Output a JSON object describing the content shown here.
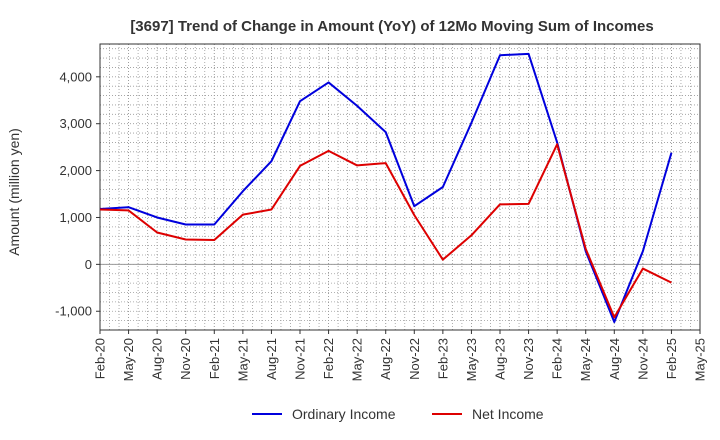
{
  "chart_data": {
    "type": "line",
    "title": "[3697]  Trend of Change in Amount (YoY) of 12Mo Moving Sum of Incomes",
    "xlabel": "",
    "ylabel": "Amount (million yen)",
    "ylim": [
      -1400,
      4700
    ],
    "yticks": [
      -1000,
      0,
      1000,
      2000,
      3000,
      4000
    ],
    "ytick_labels": [
      "-1,000",
      "0",
      "1,000",
      "2,000",
      "3,000",
      "4,000"
    ],
    "categories": [
      "Feb-20",
      "May-20",
      "Aug-20",
      "Nov-20",
      "Feb-21",
      "May-21",
      "Aug-21",
      "Nov-21",
      "Feb-22",
      "May-22",
      "Aug-22",
      "Nov-22",
      "Feb-23",
      "May-23",
      "Aug-23",
      "Nov-23",
      "Feb-24",
      "May-24",
      "Aug-24",
      "Nov-24",
      "Feb-25",
      "May-25"
    ],
    "series": [
      {
        "name": "Ordinary Income",
        "color": "#0000dd",
        "values": [
          1180,
          1220,
          1000,
          850,
          850,
          1560,
          2200,
          3480,
          3880,
          3380,
          2820,
          1240,
          1650,
          3020,
          4460,
          4490,
          2600,
          280,
          -1230,
          280,
          2380,
          null
        ]
      },
      {
        "name": "Net Income",
        "color": "#dd0000",
        "values": [
          1170,
          1150,
          680,
          530,
          520,
          1060,
          1170,
          2100,
          2420,
          2110,
          2160,
          1050,
          100,
          620,
          1280,
          1290,
          2560,
          330,
          -1130,
          -90,
          -390,
          null
        ]
      }
    ],
    "grid": true,
    "legend_position": "bottom"
  }
}
